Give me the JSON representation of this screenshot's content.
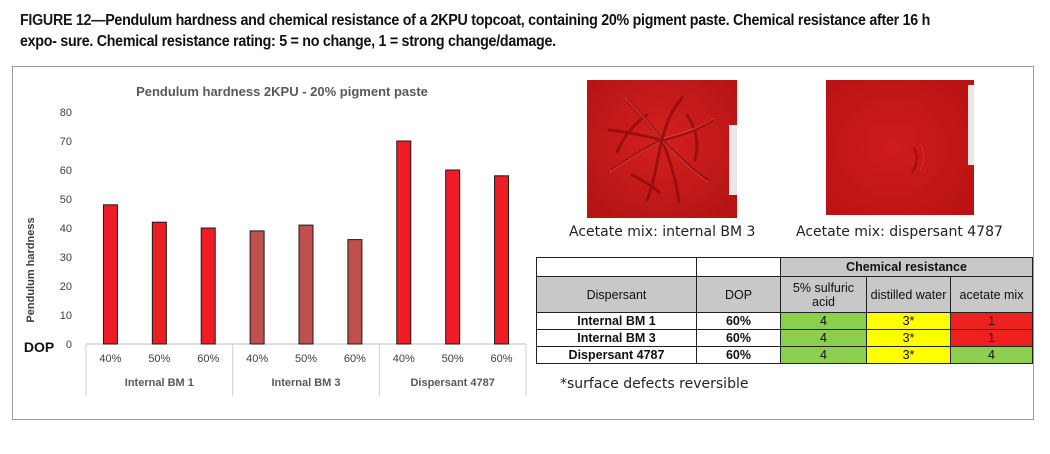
{
  "figure": {
    "caption_lead": "FIGURE 12—",
    "caption_rest": "Pendulum hardness and chemical resistance of a 2KPU topcoat, containing 20% pigment paste. Chemical resistance after 16 h expo- sure. Chemical resistance rating: 5 = no change, 1 = strong change/damage."
  },
  "chart_data": {
    "type": "bar",
    "title": "Pendulum hardness 2KPU - 20% pigment paste",
    "ylabel": "Pendulum hardness",
    "xlabel": "DOP",
    "ylim": [
      0,
      80
    ],
    "yticks": [
      0,
      10,
      20,
      30,
      40,
      50,
      60,
      70,
      80
    ],
    "grid": false,
    "groups": [
      {
        "name": "Internal BM 1",
        "categories": [
          "40%",
          "50%",
          "60%"
        ],
        "values": [
          48,
          42,
          40
        ],
        "color": "#ee1c25"
      },
      {
        "name": "Internal BM 3",
        "categories": [
          "40%",
          "50%",
          "60%"
        ],
        "values": [
          39,
          41,
          36
        ],
        "color": "#c0504d"
      },
      {
        "name": "Dispersant 4787",
        "categories": [
          "40%",
          "50%",
          "60%"
        ],
        "values": [
          70,
          60,
          58
        ],
        "color": "#ee1c25"
      }
    ]
  },
  "photos": [
    {
      "caption": "Acetate mix: internal BM 3",
      "color": "#c71a1a"
    },
    {
      "caption": "Acetate mix: dispersant 4787",
      "color": "#c41616"
    }
  ],
  "chem_table": {
    "group_header": "Chemical resistance",
    "col_dispersant": "Dispersant",
    "col_dop": "DOP",
    "col_sulfuric": "5% sulfuric acid",
    "col_water": "distilled water",
    "col_acetate": "acetate mix",
    "rows": [
      {
        "name": "Internal BM 1",
        "dop": "60%",
        "sulfuric": "4",
        "water": "3*",
        "acetate": "1"
      },
      {
        "name": "Internal BM 3",
        "dop": "60%",
        "sulfuric": "4",
        "water": "3*",
        "acetate": "1"
      },
      {
        "name": "Dispersant 4787",
        "dop": "60%",
        "sulfuric": "4",
        "water": "3*",
        "acetate": "4"
      }
    ],
    "colors": {
      "good": "#8ccf4f",
      "medium": "#ffff00",
      "bad": "#ee2020"
    },
    "note": "*surface defects reversible"
  }
}
